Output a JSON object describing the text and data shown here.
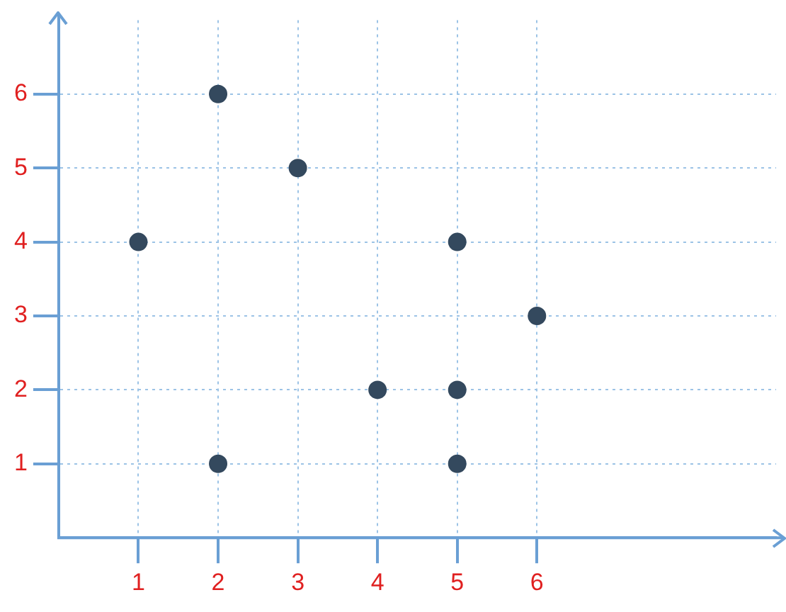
{
  "chart_data": {
    "type": "scatter",
    "x": [
      1,
      2,
      2,
      3,
      4,
      5,
      5,
      5,
      6
    ],
    "series": [
      {
        "color": "#34495e",
        "values": [
          4,
          6,
          1,
          5,
          2,
          4,
          2,
          1,
          3
        ]
      }
    ],
    "xlim": [
      0,
      9
    ],
    "ylim": [
      0,
      7
    ],
    "xticks": [
      1,
      2,
      3,
      4,
      5,
      6
    ],
    "yticks": [
      1,
      2,
      3,
      4,
      5,
      6
    ],
    "grid": true,
    "legend": false,
    "marker": "circle"
  }
}
